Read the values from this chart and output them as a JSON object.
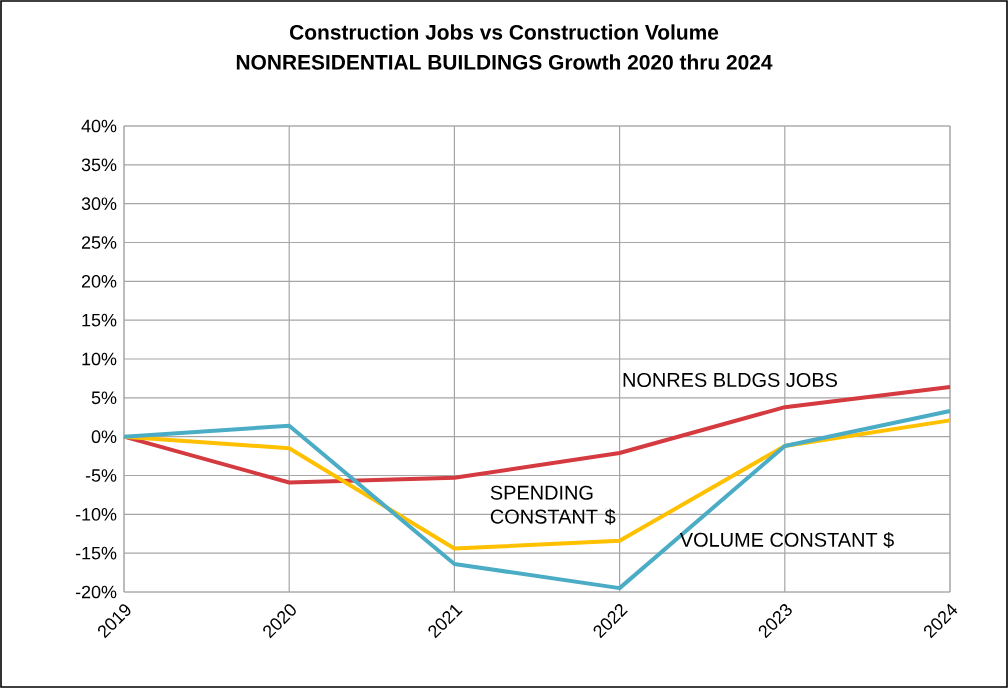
{
  "chart_data": {
    "type": "line",
    "title": "Construction Jobs vs Construction Volume",
    "subtitle": "NONRESIDENTIAL BUILDINGS Growth 2020 thru 2024",
    "categories": [
      "2019",
      "2020",
      "2021",
      "2022",
      "2023",
      "2024"
    ],
    "series": [
      {
        "name": "NONRES BLDGS JOBS",
        "color": "#d43a3f",
        "values": [
          0,
          -5.9,
          -5.3,
          -2.1,
          3.8,
          6.4
        ]
      },
      {
        "name": "SPENDING CONSTANT $",
        "color": "#ffc000",
        "values": [
          0,
          -1.5,
          -14.4,
          -13.4,
          -1.2,
          2.1
        ]
      },
      {
        "name": "VOLUME CONSTANT $",
        "color": "#4bacc6",
        "values": [
          0,
          1.4,
          -16.4,
          -19.5,
          -1.2,
          3.3
        ]
      }
    ],
    "ylim": [
      -20,
      40
    ],
    "yticks": [
      {
        "value": -20,
        "label": "-20%"
      },
      {
        "value": -15,
        "label": "-15%"
      },
      {
        "value": -10,
        "label": "-10%"
      },
      {
        "value": -5,
        "label": "-5%"
      },
      {
        "value": 0,
        "label": "0%"
      },
      {
        "value": 5,
        "label": "5%"
      },
      {
        "value": 10,
        "label": "10%"
      },
      {
        "value": 15,
        "label": "15%"
      },
      {
        "value": 20,
        "label": "20%"
      },
      {
        "value": 25,
        "label": "25%"
      },
      {
        "value": 30,
        "label": "30%"
      },
      {
        "value": 35,
        "label": "35%"
      },
      {
        "value": 40,
        "label": "40%"
      }
    ],
    "grid": true,
    "legend": false,
    "marker": "none",
    "line_style": "solid"
  }
}
